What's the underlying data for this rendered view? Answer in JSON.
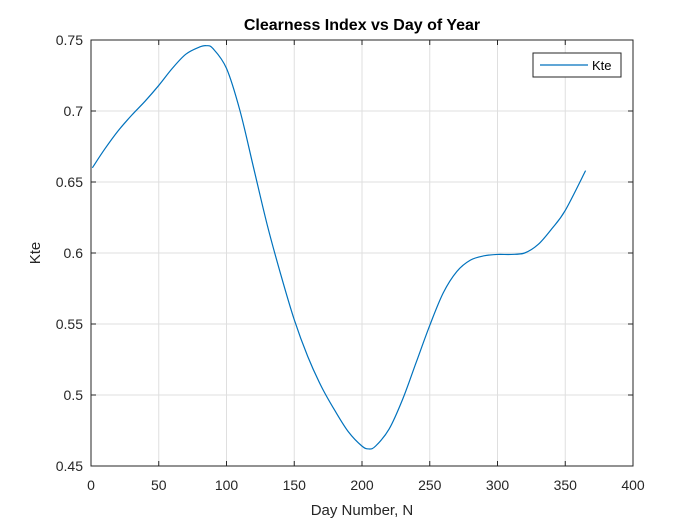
{
  "chart_data": {
    "type": "line",
    "title": "Clearness Index vs Day of Year",
    "xlabel": "Day Number, N",
    "ylabel": "Kte",
    "xlim": [
      0,
      400
    ],
    "ylim": [
      0.45,
      0.75
    ],
    "xticks": [
      0,
      50,
      100,
      150,
      200,
      250,
      300,
      350,
      400
    ],
    "yticks": [
      0.45,
      0.5,
      0.55,
      0.6,
      0.65,
      0.7,
      0.75
    ],
    "xtick_labels": [
      "0",
      "50",
      "100",
      "150",
      "200",
      "250",
      "300",
      "350",
      "400"
    ],
    "ytick_labels": [
      "0.45",
      "0.5",
      "0.55",
      "0.6",
      "0.65",
      "0.7",
      "0.75"
    ],
    "grid": true,
    "legend_position": "top-right",
    "series": [
      {
        "name": "Kte",
        "color": "#0072BD",
        "x": [
          1,
          10,
          20,
          30,
          40,
          50,
          60,
          70,
          80,
          85,
          90,
          100,
          110,
          120,
          130,
          140,
          150,
          160,
          170,
          180,
          190,
          200,
          205,
          210,
          220,
          230,
          240,
          250,
          260,
          270,
          280,
          290,
          300,
          310,
          320,
          330,
          340,
          350,
          365
        ],
        "y": [
          0.66,
          0.673,
          0.686,
          0.697,
          0.707,
          0.718,
          0.73,
          0.74,
          0.745,
          0.746,
          0.744,
          0.73,
          0.7,
          0.66,
          0.62,
          0.585,
          0.553,
          0.527,
          0.506,
          0.489,
          0.474,
          0.464,
          0.462,
          0.464,
          0.476,
          0.497,
          0.523,
          0.549,
          0.572,
          0.587,
          0.595,
          0.598,
          0.599,
          0.599,
          0.6,
          0.606,
          0.617,
          0.63,
          0.658
        ]
      }
    ]
  }
}
